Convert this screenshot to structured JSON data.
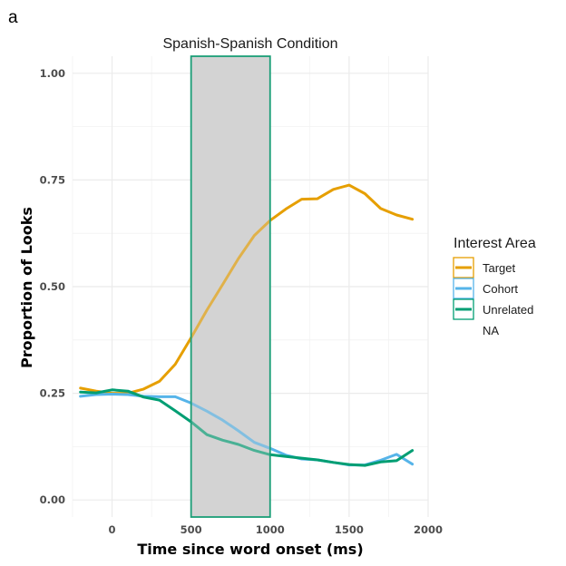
{
  "panel_letter": "a",
  "chart_data": {
    "type": "line",
    "title": "Spanish-Spanish Condition",
    "xlabel": "Time since word onset (ms)",
    "ylabel": "Proportion of Looks",
    "xlim": [
      -250,
      2000
    ],
    "ylim": [
      -0.04,
      1.04
    ],
    "xticks": [
      0,
      500,
      1000,
      1500,
      2000
    ],
    "yticks": [
      0.0,
      0.25,
      0.5,
      0.75,
      1.0
    ],
    "ytick_labels": [
      "0.00",
      "0.25",
      "0.50",
      "0.75",
      "1.00"
    ],
    "grid": true,
    "shaded_region": {
      "x": [
        500,
        1000
      ],
      "fill": "#d3d3d3",
      "stroke": "#1b9e77"
    },
    "legend": {
      "title": "Interest Area",
      "placement": "right",
      "entries": [
        "Target",
        "Cohort",
        "Unrelated",
        "NA"
      ]
    },
    "x": [
      -200,
      -100,
      0,
      100,
      200,
      300,
      400,
      500,
      600,
      700,
      800,
      900,
      1000,
      1100,
      1200,
      1300,
      1400,
      1500,
      1600,
      1700,
      1800,
      1900
    ],
    "series": [
      {
        "name": "Target",
        "color": "#E69F00",
        "values": [
          0.262,
          0.255,
          0.25,
          0.25,
          0.26,
          0.278,
          0.318,
          0.38,
          0.445,
          0.505,
          0.566,
          0.62,
          0.655,
          0.682,
          0.705,
          0.706,
          0.728,
          0.738,
          0.718,
          0.683,
          0.668,
          0.658
        ]
      },
      {
        "name": "Cohort",
        "color": "#56B4E9",
        "values": [
          0.243,
          0.247,
          0.248,
          0.247,
          0.243,
          0.242,
          0.242,
          0.227,
          0.208,
          0.187,
          0.162,
          0.135,
          0.121,
          0.105,
          0.096,
          0.094,
          0.088,
          0.082,
          0.082,
          0.093,
          0.107,
          0.084
        ]
      },
      {
        "name": "Unrelated",
        "color": "#009E73",
        "values": [
          0.253,
          0.251,
          0.258,
          0.255,
          0.241,
          0.234,
          0.209,
          0.183,
          0.153,
          0.14,
          0.13,
          0.116,
          0.106,
          0.102,
          0.098,
          0.094,
          0.088,
          0.083,
          0.081,
          0.089,
          0.092,
          0.116
        ]
      }
    ]
  }
}
